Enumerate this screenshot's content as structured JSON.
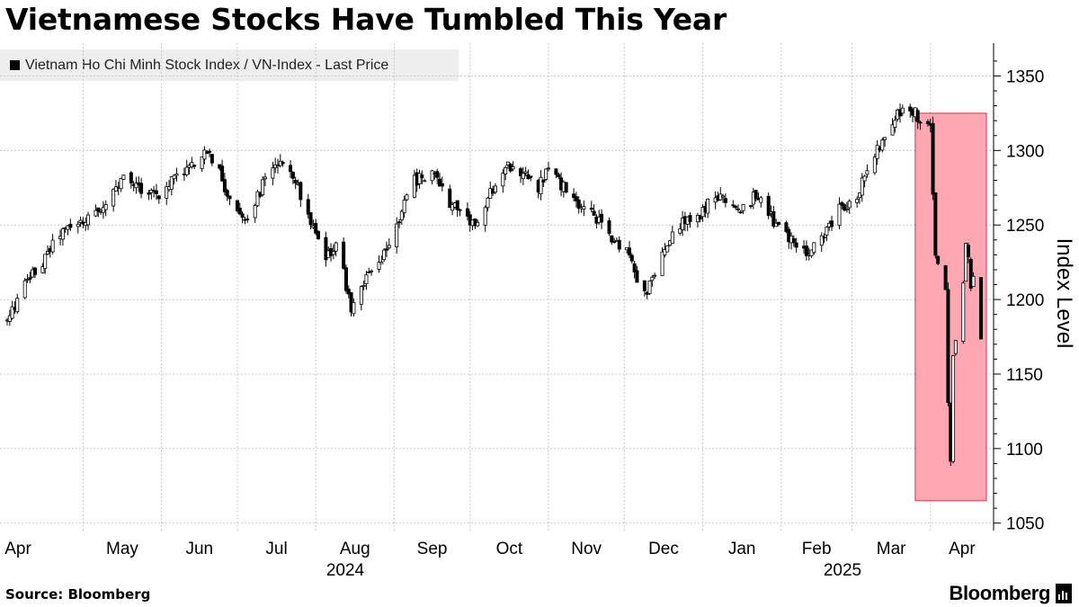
{
  "chart_data": {
    "type": "candlestick",
    "title": "Vietnamese Stocks Have Tumbled This Year",
    "series_name": "Vietnam Ho Chi Minh Stock Index / VN-Index - Last Price",
    "ylabel": "Index Level",
    "ylim": [
      1045,
      1372
    ],
    "yticks": [
      1050,
      1100,
      1150,
      1200,
      1250,
      1300,
      1350
    ],
    "xlim": [
      "2024-04-01",
      "2025-04-21"
    ],
    "month_labels": [
      "Apr",
      "May",
      "Jun",
      "Jul",
      "Aug",
      "Sep",
      "Oct",
      "Nov",
      "Dec",
      "Jan",
      "Feb",
      "Mar",
      "Apr"
    ],
    "year_labels": [
      "2024",
      "2025"
    ],
    "grid": "horizontal and vertical dashed",
    "legend_position": "top-left",
    "up_color": "#ffffff",
    "down_color": "#000000",
    "highlight": {
      "x_start": "2025-03-26",
      "x_end": "2025-04-21",
      "y_range": [
        1065,
        1325
      ],
      "color": "#ffa8b4"
    },
    "close_points": [
      [
        "2024-04-01",
        1185
      ],
      [
        "2024-04-08",
        1210
      ],
      [
        "2024-04-15",
        1225
      ],
      [
        "2024-04-22",
        1245
      ],
      [
        "2024-04-29",
        1250
      ],
      [
        "2024-05-03",
        1255
      ],
      [
        "2024-05-10",
        1265
      ],
      [
        "2024-05-17",
        1280
      ],
      [
        "2024-05-24",
        1275
      ],
      [
        "2024-05-31",
        1270
      ],
      [
        "2024-06-07",
        1285
      ],
      [
        "2024-06-14",
        1290
      ],
      [
        "2024-06-19",
        1300
      ],
      [
        "2024-06-24",
        1285
      ],
      [
        "2024-06-28",
        1265
      ],
      [
        "2024-07-05",
        1255
      ],
      [
        "2024-07-12",
        1280
      ],
      [
        "2024-07-17",
        1290
      ],
      [
        "2024-07-23",
        1285
      ],
      [
        "2024-07-30",
        1250
      ],
      [
        "2024-08-05",
        1225
      ],
      [
        "2024-08-09",
        1240
      ],
      [
        "2024-08-15",
        1195
      ],
      [
        "2024-08-21",
        1215
      ],
      [
        "2024-08-27",
        1225
      ],
      [
        "2024-09-03",
        1255
      ],
      [
        "2024-09-09",
        1280
      ],
      [
        "2024-09-16",
        1285
      ],
      [
        "2024-09-23",
        1265
      ],
      [
        "2024-09-30",
        1255
      ],
      [
        "2024-10-04",
        1248
      ],
      [
        "2024-10-10",
        1275
      ],
      [
        "2024-10-16",
        1290
      ],
      [
        "2024-10-22",
        1285
      ],
      [
        "2024-10-28",
        1275
      ],
      [
        "2024-11-01",
        1290
      ],
      [
        "2024-11-07",
        1275
      ],
      [
        "2024-11-14",
        1260
      ],
      [
        "2024-11-20",
        1255
      ],
      [
        "2024-11-26",
        1240
      ],
      [
        "2024-12-02",
        1235
      ],
      [
        "2024-12-06",
        1215
      ],
      [
        "2024-12-10",
        1205
      ],
      [
        "2024-12-16",
        1230
      ],
      [
        "2024-12-23",
        1250
      ],
      [
        "2024-12-30",
        1255
      ],
      [
        "2025-01-06",
        1270
      ],
      [
        "2025-01-10",
        1265
      ],
      [
        "2025-01-16",
        1260
      ],
      [
        "2025-01-22",
        1270
      ],
      [
        "2025-01-28",
        1255
      ],
      [
        "2025-02-05",
        1240
      ],
      [
        "2025-02-11",
        1230
      ],
      [
        "2025-02-17",
        1240
      ],
      [
        "2025-02-24",
        1260
      ],
      [
        "2025-03-03",
        1270
      ],
      [
        "2025-03-07",
        1290
      ],
      [
        "2025-03-13",
        1305
      ],
      [
        "2025-03-19",
        1325
      ],
      [
        "2025-03-24",
        1330
      ],
      [
        "2025-03-28",
        1320
      ],
      [
        "2025-04-01",
        1315
      ],
      [
        "2025-04-03",
        1230
      ],
      [
        "2025-04-07",
        1210
      ],
      [
        "2025-04-08",
        1130
      ],
      [
        "2025-04-09",
        1095
      ],
      [
        "2025-04-10",
        1160
      ],
      [
        "2025-04-14",
        1210
      ],
      [
        "2025-04-15",
        1235
      ],
      [
        "2025-04-16",
        1225
      ],
      [
        "2025-04-17",
        1210
      ],
      [
        "2025-04-18",
        1215
      ],
      [
        "2025-04-21",
        1175
      ]
    ]
  },
  "source": "Source: Bloomberg",
  "brand": "Bloomberg"
}
